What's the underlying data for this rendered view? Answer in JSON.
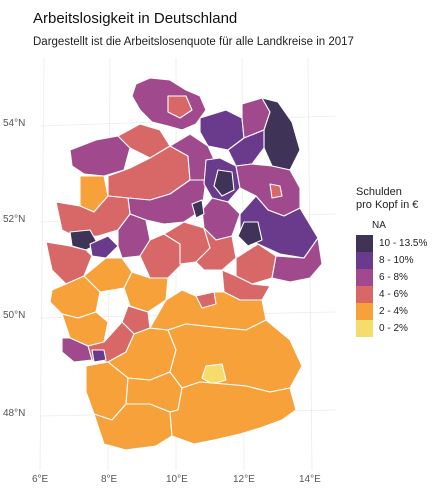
{
  "title": "Arbeitslosigkeit in Deutschland",
  "subtitle": "Dargestellt ist die Arbeitslosenquote für alle Landkreise in 2017",
  "axes": {
    "lat_labels": [
      "54°N",
      "52°N",
      "50°N",
      "48°N"
    ],
    "lon_labels": [
      "6°E",
      "8°E",
      "10°E",
      "12°E",
      "14°E"
    ]
  },
  "legend": {
    "title_line1": "Schulden",
    "title_line2": "pro Kopf in €",
    "na_label": "NA",
    "items": [
      {
        "label": "10 - 13.5%",
        "color": "#3f3358"
      },
      {
        "label": "8 - 10%",
        "color": "#6a3a8c"
      },
      {
        "label": "6 - 8%",
        "color": "#a04a8d"
      },
      {
        "label": "4 - 6%",
        "color": "#d86767"
      },
      {
        "label": "2 - 4%",
        "color": "#f7a13b"
      },
      {
        "label": "0 - 2%",
        "color": "#f6dc6a"
      }
    ]
  },
  "map_colors": {
    "background": "#ffffff",
    "grid": "#e8e8e8",
    "border": "#ffffff"
  }
}
